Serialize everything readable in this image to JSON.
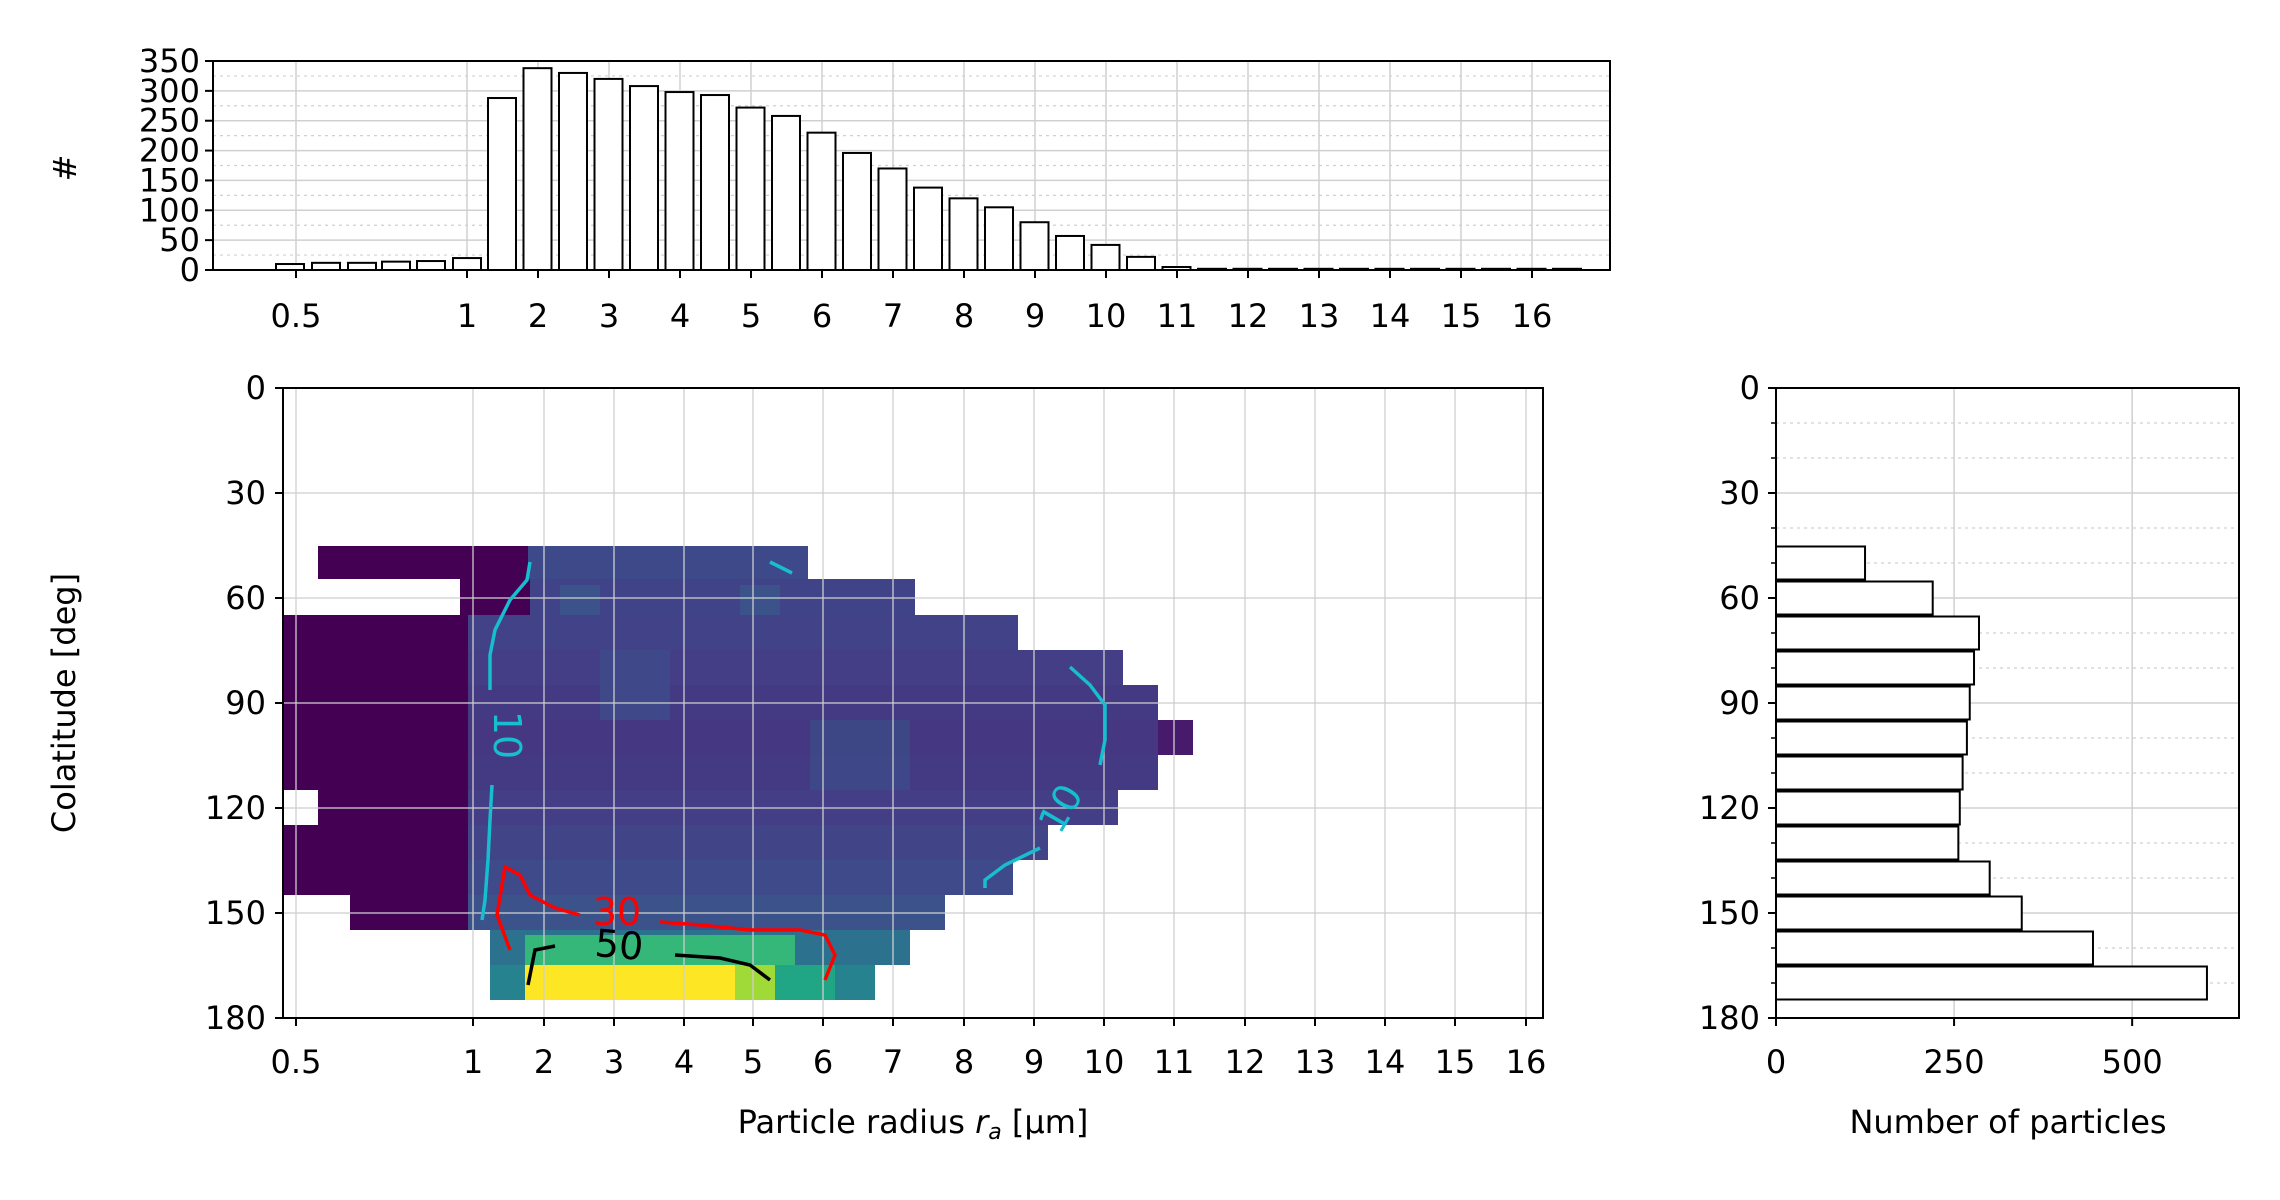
{
  "chart_data": [
    {
      "id": "top-histogram",
      "type": "bar",
      "ylabel": "#",
      "xlabel": "",
      "ylim": [
        0,
        350
      ],
      "yticks": [
        0,
        50,
        100,
        150,
        200,
        250,
        300,
        350
      ],
      "ytick_labels": [
        "0",
        "50",
        "100",
        "150",
        "200",
        "250",
        "300",
        "350"
      ],
      "xtick_labels": [
        "0.5",
        "1",
        "2",
        "3",
        "4",
        "5",
        "6",
        "7",
        "8",
        "9",
        "10",
        "11",
        "12",
        "13",
        "14",
        "15",
        "16"
      ],
      "grid": true,
      "values": [
        10,
        12,
        12,
        14,
        15,
        20,
        288,
        338,
        330,
        320,
        308,
        298,
        293,
        272,
        258,
        230,
        196,
        170,
        138,
        120,
        105,
        80,
        57,
        42,
        22,
        5,
        2,
        2,
        2,
        2,
        2,
        2,
        2,
        2,
        2,
        2,
        2
      ]
    },
    {
      "id": "main-heatmap",
      "type": "heatmap",
      "xlabel_prefix": "Particle radius ",
      "xlabel_var": "r",
      "xlabel_sub": "a",
      "xlabel_suffix": " [µm]",
      "ylabel": "Colatitude [deg]",
      "ylim": [
        180,
        0
      ],
      "yticks": [
        0,
        30,
        60,
        90,
        120,
        150,
        180
      ],
      "ytick_labels": [
        "0",
        "30",
        "60",
        "90",
        "120",
        "150",
        "180"
      ],
      "xtick_labels": [
        "0.5",
        "1",
        "2",
        "3",
        "4",
        "5",
        "6",
        "7",
        "8",
        "9",
        "10",
        "11",
        "12",
        "13",
        "14",
        "15",
        "16"
      ],
      "grid": true,
      "colormap": "viridis",
      "contour_labels": [
        {
          "text": "10",
          "color": "#17becf"
        },
        {
          "text": "10",
          "color": "#17becf"
        },
        {
          "text": "30",
          "color": "#ff0000"
        },
        {
          "text": "50",
          "color": "#000000"
        }
      ]
    },
    {
      "id": "right-histogram",
      "type": "bar",
      "orientation": "horizontal",
      "xlabel": "Number of particles",
      "xlim": [
        0,
        650
      ],
      "xticks": [
        0,
        250,
        500
      ],
      "xtick_labels": [
        "0",
        "250",
        "500"
      ],
      "ylim": [
        180,
        0
      ],
      "yticks": [
        0,
        30,
        60,
        90,
        120,
        150,
        180
      ],
      "ytick_labels": [
        "0",
        "30",
        "60",
        "90",
        "120",
        "150",
        "180"
      ],
      "grid": true,
      "bins": [
        {
          "from": 45,
          "to": 55,
          "value": 125
        },
        {
          "from": 55,
          "to": 65,
          "value": 220
        },
        {
          "from": 65,
          "to": 75,
          "value": 285
        },
        {
          "from": 75,
          "to": 85,
          "value": 278
        },
        {
          "from": 85,
          "to": 95,
          "value": 272
        },
        {
          "from": 95,
          "to": 105,
          "value": 268
        },
        {
          "from": 105,
          "to": 115,
          "value": 262
        },
        {
          "from": 115,
          "to": 125,
          "value": 258
        },
        {
          "from": 125,
          "to": 135,
          "value": 256
        },
        {
          "from": 135,
          "to": 145,
          "value": 300
        },
        {
          "from": 145,
          "to": 155,
          "value": 345
        },
        {
          "from": 155,
          "to": 165,
          "value": 445
        },
        {
          "from": 165,
          "to": 175,
          "value": 605
        }
      ]
    }
  ]
}
